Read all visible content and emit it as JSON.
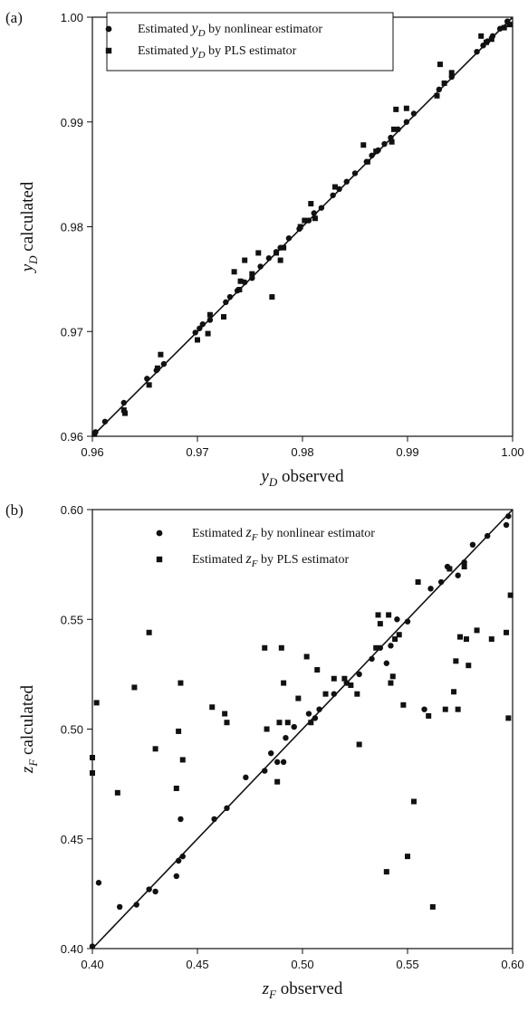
{
  "chart_data": [
    {
      "panel_label": "(a)",
      "type": "scatter",
      "xlabel": {
        "var": "y",
        "sub": "D",
        "text": "observed"
      },
      "ylabel": {
        "var": "y",
        "sub": "D",
        "text": "calculated"
      },
      "xlim": [
        0.96,
        1.0
      ],
      "ylim": [
        0.96,
        1.0
      ],
      "xticks": [
        "0.96",
        "0.97",
        "0.98",
        "0.99",
        "1.00"
      ],
      "yticks": [
        "0.96",
        "0.97",
        "0.98",
        "0.99",
        "1.00"
      ],
      "legend_position": "top-left",
      "reference_line": [
        [
          0.96,
          0.96
        ],
        [
          1.0,
          1.0
        ]
      ],
      "series": [
        {
          "name": "Estimated yD by nonlinear estimator",
          "legend": {
            "pre": "Estimated ",
            "var": "y",
            "sub": "D",
            "post": " by nonlinear estimator"
          },
          "marker": "circle",
          "points": [
            [
              0.9603,
              0.9604
            ],
            [
              0.9612,
              0.9614
            ],
            [
              0.963,
              0.9632
            ],
            [
              0.9652,
              0.9655
            ],
            [
              0.9661,
              0.9663
            ],
            [
              0.9668,
              0.9669
            ],
            [
              0.9698,
              0.9699
            ],
            [
              0.9702,
              0.9703
            ],
            [
              0.9705,
              0.9707
            ],
            [
              0.9712,
              0.9711
            ],
            [
              0.9727,
              0.9728
            ],
            [
              0.9731,
              0.9733
            ],
            [
              0.9738,
              0.9739
            ],
            [
              0.9745,
              0.9747
            ],
            [
              0.9752,
              0.9751
            ],
            [
              0.976,
              0.9762
            ],
            [
              0.9768,
              0.977
            ],
            [
              0.9775,
              0.9776
            ],
            [
              0.9779,
              0.978
            ],
            [
              0.9787,
              0.9789
            ],
            [
              0.9797,
              0.9798
            ],
            [
              0.9806,
              0.9806
            ],
            [
              0.9811,
              0.9813
            ],
            [
              0.9818,
              0.9818
            ],
            [
              0.9829,
              0.983
            ],
            [
              0.9835,
              0.9836
            ],
            [
              0.9842,
              0.9843
            ],
            [
              0.985,
              0.9851
            ],
            [
              0.9861,
              0.9862
            ],
            [
              0.9866,
              0.9868
            ],
            [
              0.9872,
              0.9873
            ],
            [
              0.9878,
              0.9879
            ],
            [
              0.9884,
              0.9885
            ],
            [
              0.9891,
              0.9893
            ],
            [
              0.9899,
              0.99
            ],
            [
              0.9906,
              0.9908
            ],
            [
              0.993,
              0.9931
            ],
            [
              0.9942,
              0.9943
            ],
            [
              0.9966,
              0.9967
            ],
            [
              0.9972,
              0.9973
            ],
            [
              0.9976,
              0.9977
            ],
            [
              0.9981,
              0.9982
            ],
            [
              0.9988,
              0.9989
            ],
            [
              0.9995,
              0.9996
            ]
          ]
        },
        {
          "name": "Estimated yD by PLS estimator",
          "legend": {
            "pre": "Estimated ",
            "var": "y",
            "sub": "D",
            "post": " by PLS estimator"
          },
          "marker": "square",
          "points": [
            [
              0.9602,
              0.9602
            ],
            [
              0.963,
              0.9625
            ],
            [
              0.9631,
              0.9622
            ],
            [
              0.9654,
              0.9649
            ],
            [
              0.9662,
              0.9665
            ],
            [
              0.9665,
              0.9678
            ],
            [
              0.97,
              0.9692
            ],
            [
              0.971,
              0.9698
            ],
            [
              0.9712,
              0.9716
            ],
            [
              0.9725,
              0.9714
            ],
            [
              0.9735,
              0.9757
            ],
            [
              0.974,
              0.974
            ],
            [
              0.9741,
              0.9748
            ],
            [
              0.9745,
              0.9768
            ],
            [
              0.9752,
              0.9755
            ],
            [
              0.9758,
              0.9775
            ],
            [
              0.9771,
              0.9733
            ],
            [
              0.9775,
              0.9775
            ],
            [
              0.9779,
              0.9768
            ],
            [
              0.9782,
              0.978
            ],
            [
              0.9798,
              0.98
            ],
            [
              0.9802,
              0.9806
            ],
            [
              0.9808,
              0.9822
            ],
            [
              0.9812,
              0.9808
            ],
            [
              0.9831,
              0.9838
            ],
            [
              0.9858,
              0.9878
            ],
            [
              0.9862,
              0.9862
            ],
            [
              0.987,
              0.9872
            ],
            [
              0.9885,
              0.9881
            ],
            [
              0.9887,
              0.9893
            ],
            [
              0.9889,
              0.9912
            ],
            [
              0.9899,
              0.9913
            ],
            [
              0.9928,
              0.9925
            ],
            [
              0.9931,
              0.9955
            ],
            [
              0.9935,
              0.9937
            ],
            [
              0.9942,
              0.9947
            ],
            [
              0.997,
              0.9982
            ],
            [
              0.9975,
              0.9976
            ],
            [
              0.998,
              0.9979
            ],
            [
              0.9992,
              0.999
            ],
            [
              0.9997,
              0.9993
            ]
          ]
        }
      ]
    },
    {
      "panel_label": "(b)",
      "type": "scatter",
      "xlabel": {
        "var": "z",
        "sub": "F",
        "text": "observed"
      },
      "ylabel": {
        "var": "z",
        "sub": "F",
        "text": "calculated"
      },
      "xlim": [
        0.4,
        0.6
      ],
      "ylim": [
        0.4,
        0.6
      ],
      "xticks": [
        "0.40",
        "0.45",
        "0.50",
        "0.55",
        "0.60"
      ],
      "yticks": [
        "0.40",
        "0.45",
        "0.50",
        "0.55",
        "0.60"
      ],
      "legend_position": "top-center",
      "reference_line": [
        [
          0.4,
          0.4
        ],
        [
          0.6,
          0.6
        ]
      ],
      "series": [
        {
          "name": "Estimated zF by nonlinear estimator",
          "legend": {
            "pre": "Estimated ",
            "var": "z",
            "sub": "F",
            "post": " by nonlinear estimator"
          },
          "marker": "circle",
          "points": [
            [
              0.4,
              0.401
            ],
            [
              0.403,
              0.43
            ],
            [
              0.413,
              0.419
            ],
            [
              0.421,
              0.42
            ],
            [
              0.427,
              0.427
            ],
            [
              0.43,
              0.426
            ],
            [
              0.44,
              0.433
            ],
            [
              0.441,
              0.44
            ],
            [
              0.442,
              0.459
            ],
            [
              0.443,
              0.442
            ],
            [
              0.458,
              0.459
            ],
            [
              0.464,
              0.464
            ],
            [
              0.473,
              0.478
            ],
            [
              0.482,
              0.481
            ],
            [
              0.485,
              0.489
            ],
            [
              0.488,
              0.485
            ],
            [
              0.491,
              0.485
            ],
            [
              0.492,
              0.496
            ],
            [
              0.496,
              0.501
            ],
            [
              0.503,
              0.507
            ],
            [
              0.506,
              0.505
            ],
            [
              0.508,
              0.509
            ],
            [
              0.515,
              0.516
            ],
            [
              0.521,
              0.521
            ],
            [
              0.527,
              0.525
            ],
            [
              0.533,
              0.532
            ],
            [
              0.537,
              0.537
            ],
            [
              0.54,
              0.53
            ],
            [
              0.542,
              0.538
            ],
            [
              0.545,
              0.55
            ],
            [
              0.55,
              0.549
            ],
            [
              0.558,
              0.509
            ],
            [
              0.561,
              0.564
            ],
            [
              0.566,
              0.567
            ],
            [
              0.569,
              0.574
            ],
            [
              0.574,
              0.57
            ],
            [
              0.577,
              0.576
            ],
            [
              0.581,
              0.584
            ],
            [
              0.588,
              0.588
            ],
            [
              0.597,
              0.593
            ],
            [
              0.598,
              0.597
            ]
          ]
        },
        {
          "name": "Estimated zF by PLS estimator",
          "legend": {
            "pre": "Estimated ",
            "var": "z",
            "sub": "F",
            "post": " by PLS estimator"
          },
          "marker": "square",
          "points": [
            [
              0.4,
              0.48
            ],
            [
              0.4,
              0.487
            ],
            [
              0.402,
              0.512
            ],
            [
              0.412,
              0.471
            ],
            [
              0.42,
              0.519
            ],
            [
              0.427,
              0.544
            ],
            [
              0.43,
              0.491
            ],
            [
              0.44,
              0.473
            ],
            [
              0.441,
              0.499
            ],
            [
              0.442,
              0.521
            ],
            [
              0.443,
              0.486
            ],
            [
              0.457,
              0.51
            ],
            [
              0.463,
              0.507
            ],
            [
              0.464,
              0.503
            ],
            [
              0.482,
              0.537
            ],
            [
              0.483,
              0.5
            ],
            [
              0.488,
              0.476
            ],
            [
              0.489,
              0.503
            ],
            [
              0.49,
              0.537
            ],
            [
              0.491,
              0.521
            ],
            [
              0.493,
              0.503
            ],
            [
              0.498,
              0.514
            ],
            [
              0.502,
              0.533
            ],
            [
              0.504,
              0.503
            ],
            [
              0.507,
              0.527
            ],
            [
              0.511,
              0.516
            ],
            [
              0.515,
              0.523
            ],
            [
              0.52,
              0.523
            ],
            [
              0.523,
              0.52
            ],
            [
              0.526,
              0.516
            ],
            [
              0.527,
              0.493
            ],
            [
              0.535,
              0.537
            ],
            [
              0.536,
              0.552
            ],
            [
              0.537,
              0.548
            ],
            [
              0.54,
              0.435
            ],
            [
              0.541,
              0.552
            ],
            [
              0.542,
              0.521
            ],
            [
              0.543,
              0.524
            ],
            [
              0.544,
              0.541
            ],
            [
              0.546,
              0.543
            ],
            [
              0.548,
              0.511
            ],
            [
              0.55,
              0.442
            ],
            [
              0.553,
              0.467
            ],
            [
              0.555,
              0.567
            ],
            [
              0.56,
              0.506
            ],
            [
              0.562,
              0.419
            ],
            [
              0.568,
              0.509
            ],
            [
              0.57,
              0.573
            ],
            [
              0.572,
              0.517
            ],
            [
              0.573,
              0.531
            ],
            [
              0.574,
              0.509
            ],
            [
              0.575,
              0.542
            ],
            [
              0.577,
              0.574
            ],
            [
              0.578,
              0.541
            ],
            [
              0.579,
              0.529
            ],
            [
              0.583,
              0.545
            ],
            [
              0.59,
              0.541
            ],
            [
              0.597,
              0.544
            ],
            [
              0.598,
              0.505
            ],
            [
              0.599,
              0.561
            ]
          ]
        }
      ]
    }
  ]
}
